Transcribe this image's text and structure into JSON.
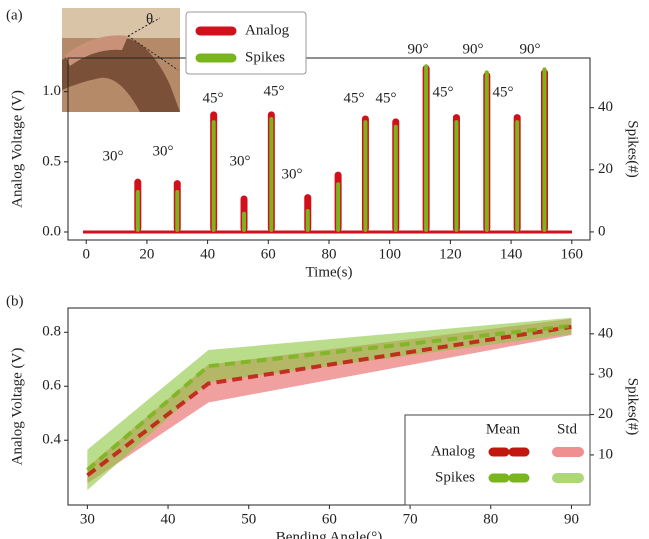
{
  "chart_data": [
    {
      "type": "pulse",
      "panel_label": "(a)",
      "x_label": "Time(s)",
      "y_label": "Analog Voltage (V)",
      "y2_label": "Spikes(#)",
      "inset_label": "θ",
      "x": [
        17,
        30,
        42,
        52,
        61,
        73,
        83,
        92,
        102,
        112,
        122,
        132,
        142,
        151
      ],
      "series": [
        {
          "name": "Analog",
          "color": "#d0101a",
          "axis": "y",
          "values": [
            0.38,
            0.37,
            0.86,
            0.26,
            0.86,
            0.27,
            0.43,
            0.83,
            0.81,
            1.19,
            0.84,
            1.14,
            0.84,
            1.16
          ]
        },
        {
          "name": "Spikes",
          "color": "#7ab51d",
          "axis": "y2",
          "values": [
            13.5,
            13.5,
            36,
            6.5,
            37,
            7.4,
            16,
            36,
            34.5,
            54,
            36,
            52,
            36,
            53
          ]
        }
      ],
      "annotations": [
        "30°",
        "30°",
        "45°",
        "30°",
        "45°",
        "30°",
        "45°",
        "45°",
        "90°",
        "45°",
        "90°",
        "45°",
        "90°"
      ],
      "xlim": [
        -6,
        166
      ],
      "xticks": [
        0,
        20,
        40,
        60,
        80,
        100,
        120,
        140,
        160
      ],
      "ylim": [
        -0.057,
        1.24
      ],
      "yticks": [
        {
          "value": 0,
          "label": "0.0"
        },
        0.5,
        {
          "value": 1,
          "label": "1.0"
        }
      ],
      "y2lim": [
        -2.6,
        56
      ],
      "y2ticks": [
        0,
        20,
        40
      ]
    },
    {
      "type": "band",
      "panel_label": "(b)",
      "x_label": "Bending Angle(°)",
      "y_label": "Analog Voltage (V)",
      "y2_label": "Spikes(#)",
      "legend_headers": [
        "Mean",
        "Std"
      ],
      "x": [
        30,
        45,
        90
      ],
      "series": [
        {
          "name": "Analog",
          "color": "#c0180f",
          "band_color": "#e86060",
          "axis": "y",
          "values": [
            0.27,
            0.61,
            0.82
          ],
          "std": [
            0.03,
            0.07,
            0.03
          ]
        },
        {
          "name": "Spikes",
          "color": "#7ab51d",
          "band_color": "#8cc63f",
          "axis": "y2",
          "values": [
            6.3,
            32,
            42
          ],
          "std": [
            5,
            4,
            2
          ]
        }
      ],
      "xlim": [
        27.6,
        92.3
      ],
      "xticks": [
        30,
        40,
        50,
        60,
        70,
        80,
        90
      ],
      "ylim": [
        0.16,
        0.89
      ],
      "yticks": [
        0.4,
        0.6,
        0.8
      ],
      "y2lim": [
        -2.4,
        46.4
      ],
      "y2ticks": [
        10,
        20,
        30,
        40
      ]
    }
  ]
}
